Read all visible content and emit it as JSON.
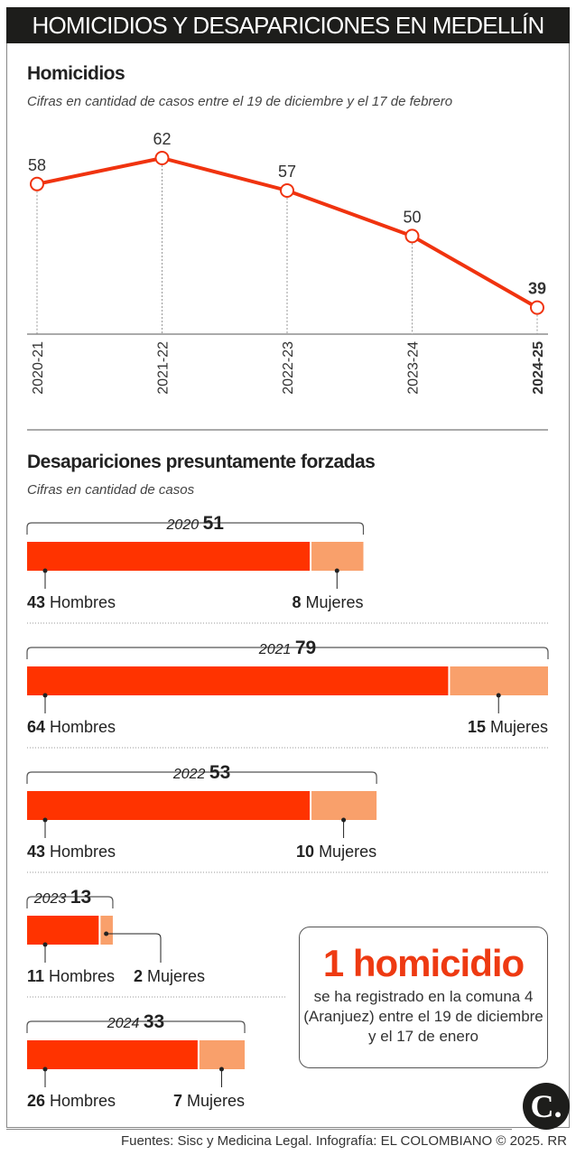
{
  "title": "HOMICIDIOS Y DESAPARICIONES EN MEDELLÍN",
  "chart_data": [
    {
      "type": "line",
      "title": "Homicidios",
      "subtitle": "Cifras en cantidad de casos entre el 19 de diciembre y el 17 de febrero",
      "categories": [
        "2020-21",
        "2021-22",
        "2022-23",
        "2023-24",
        "2024-25"
      ],
      "values": [
        58,
        62,
        57,
        50,
        39
      ],
      "highlight_index": 4,
      "color": "#f0330f"
    },
    {
      "type": "bar",
      "stacked": true,
      "orientation": "horizontal",
      "title": "Desapariciones presuntamente forzadas",
      "subtitle": "Cifras en cantidad de casos",
      "categories": [
        "2020",
        "2021",
        "2022",
        "2023",
        "2024"
      ],
      "totals": [
        51,
        79,
        53,
        13,
        33
      ],
      "series": [
        {
          "name": "Hombres",
          "values": [
            43,
            64,
            43,
            11,
            26
          ],
          "color": "#ff3300"
        },
        {
          "name": "Mujeres",
          "values": [
            8,
            15,
            10,
            2,
            7
          ],
          "color": "#f9a06b"
        }
      ]
    }
  ],
  "callout": {
    "headline": "1 homicidio",
    "text": "se ha registrado en la comuna 4 (Aranjuez) entre el 19 de diciembre y el 17 de enero"
  },
  "logo": "C.",
  "footer": "Fuentes: Sisc y Medicina Legal. Infografía: EL COLOMBIANO © 2025. RR"
}
